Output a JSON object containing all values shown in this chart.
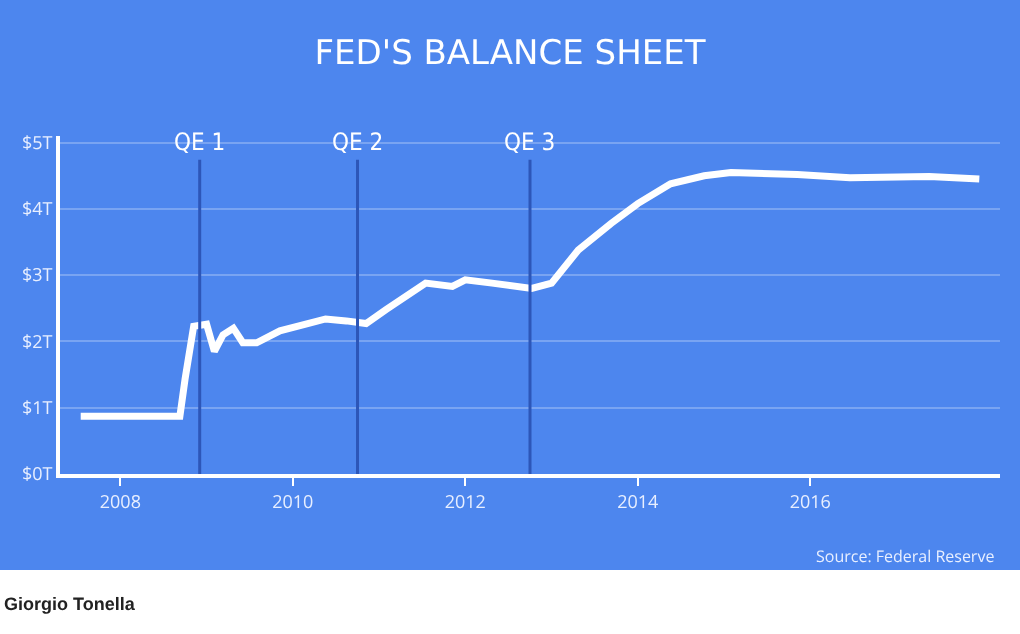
{
  "chart_data": {
    "type": "line",
    "title": "FED'S BALANCE SHEET",
    "x": [
      2007.54,
      2008.69,
      2008.75,
      2008.85,
      2009.0,
      2009.09,
      2009.19,
      2009.31,
      2009.42,
      2009.58,
      2009.85,
      2010.15,
      2010.38,
      2010.62,
      2010.85,
      2011.08,
      2011.54,
      2011.85,
      2012.0,
      2012.31,
      2012.77,
      2013.0,
      2013.31,
      2013.69,
      2014.0,
      2014.38,
      2014.77,
      2015.08,
      2015.85,
      2016.46,
      2017.38,
      2017.96
    ],
    "series": [
      {
        "color": "#ffffff",
        "values": [
          0.87,
          0.87,
          1.43,
          2.23,
          2.26,
          1.85,
          2.1,
          2.2,
          1.98,
          1.98,
          2.16,
          2.26,
          2.34,
          2.31,
          2.27,
          2.48,
          2.88,
          2.83,
          2.93,
          2.88,
          2.8,
          2.88,
          3.38,
          3.78,
          4.08,
          4.38,
          4.5,
          4.55,
          4.52,
          4.47,
          4.49,
          4.45
        ]
      }
    ],
    "xlim": [
      2007.3,
      2018.2
    ],
    "xticks": [
      2008,
      2010,
      2012,
      2014,
      2016
    ],
    "ylim": [
      0,
      5.1
    ],
    "yticks": [
      {
        "value": 0,
        "label": "$0T"
      },
      {
        "value": 1,
        "label": "$1T"
      },
      {
        "value": 2,
        "label": "$2T"
      },
      {
        "value": 3,
        "label": "$3T"
      },
      {
        "value": 4,
        "label": "$4T"
      },
      {
        "value": 5,
        "label": "$5T"
      }
    ],
    "ref_lines": [
      {
        "axis": "x",
        "value": 2008.92,
        "label": "QE 1",
        "color": "#2d56b8"
      },
      {
        "axis": "x",
        "value": 2010.75,
        "label": "QE 2",
        "color": "#2d56b8"
      },
      {
        "axis": "x",
        "value": 2012.75,
        "label": "QE 3",
        "color": "#2d56b8"
      }
    ],
    "grid": "y",
    "marker": "none",
    "line_style": "solid",
    "annotations": [
      "Source: Federal Reserve",
      "Giorgio Tonella"
    ]
  }
}
